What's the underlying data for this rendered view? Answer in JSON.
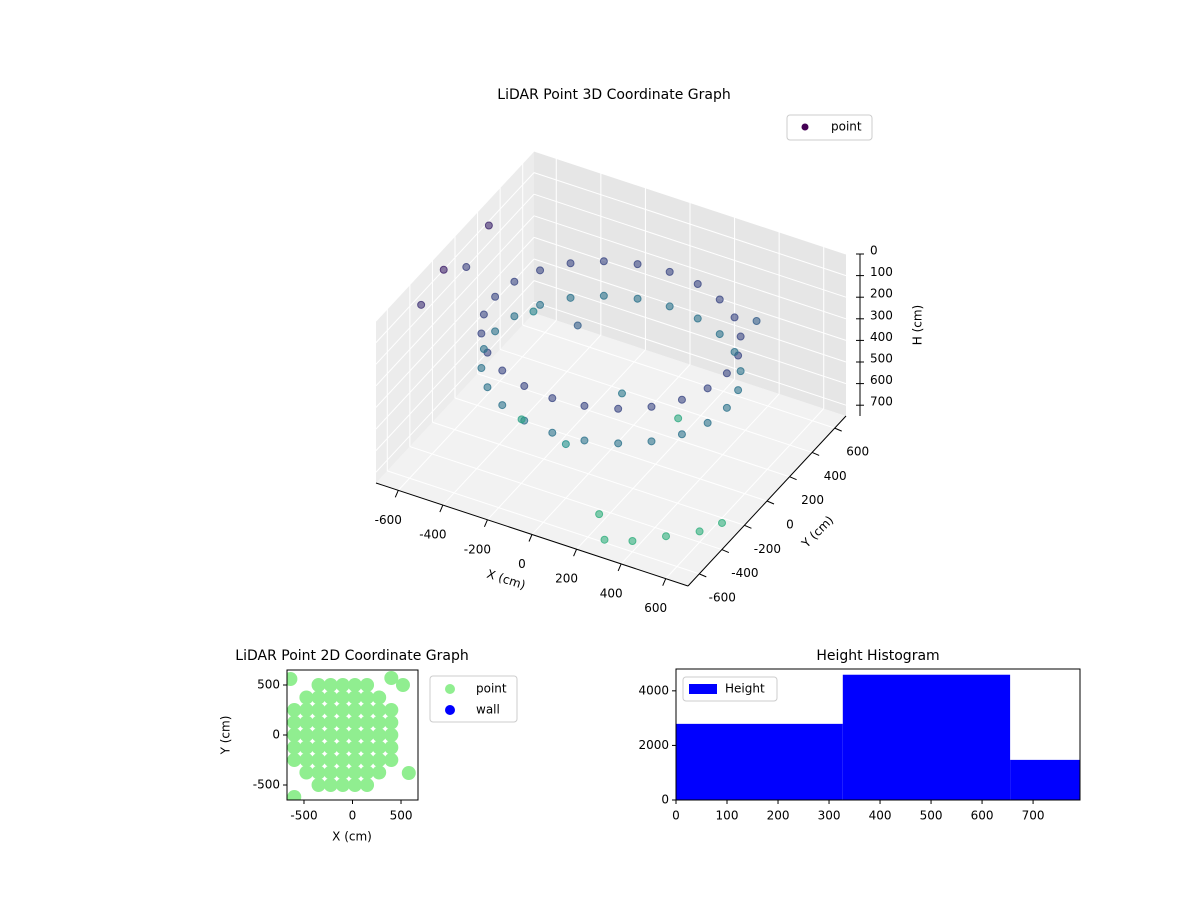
{
  "chart_data": [
    {
      "type": "scatter3d",
      "title": "LiDAR Point 3D Coordinate Graph",
      "xlabel": "X (cm)",
      "ylabel": "Y (cm)",
      "zlabel": "H (cm)",
      "xlim": [
        -700,
        700
      ],
      "ylim": [
        -700,
        700
      ],
      "zlim": [
        0,
        750
      ],
      "z_inverted": true,
      "xticks": [
        -600,
        -400,
        -200,
        0,
        200,
        400,
        600
      ],
      "yticks": [
        -600,
        -400,
        -200,
        0,
        200,
        400,
        600
      ],
      "zticks": [
        0,
        100,
        200,
        300,
        400,
        500,
        600,
        700
      ],
      "grid": true,
      "legend": "upper right",
      "alpha": 0.6,
      "colormap": [
        "#440154",
        "#3b528b",
        "#21918c",
        "#35b779"
      ],
      "series": [
        {
          "name": "point",
          "color": "#440154",
          "x": [
            520,
            502,
            450,
            368,
            260,
            135,
            0,
            -135,
            -260,
            -368,
            -450,
            -502,
            -520,
            -502,
            -450,
            -368,
            -260,
            -135,
            0,
            135,
            260,
            368,
            450,
            502,
            520,
            502,
            450,
            368,
            260,
            135,
            0,
            -135,
            -260,
            -368,
            -450,
            -502,
            -520,
            -502,
            -450,
            -368,
            -260,
            -135,
            0,
            135,
            260,
            368,
            450,
            502,
            300,
            400,
            500,
            600,
            650,
            200,
            -700,
            -700,
            -700,
            -700,
            -300,
            0,
            200,
            -500,
            400,
            100,
            -200
          ],
          "y": [
            0,
            135,
            260,
            368,
            450,
            502,
            520,
            502,
            450,
            368,
            260,
            135,
            0,
            -135,
            -260,
            -368,
            -450,
            -502,
            -520,
            -502,
            -450,
            -368,
            -260,
            -135,
            0,
            135,
            260,
            368,
            450,
            502,
            520,
            502,
            450,
            368,
            260,
            135,
            0,
            -135,
            -260,
            -368,
            -450,
            -502,
            -520,
            -502,
            -450,
            -368,
            -260,
            -135,
            -650,
            -600,
            -500,
            -400,
            -300,
            -500,
            -300,
            -100,
            100,
            300,
            -200,
            -400,
            200,
            300,
            500,
            -100,
            100
          ],
          "z": [
            220,
            220,
            220,
            220,
            220,
            220,
            220,
            220,
            220,
            220,
            220,
            220,
            220,
            220,
            220,
            220,
            220,
            220,
            220,
            220,
            220,
            220,
            220,
            220,
            380,
            380,
            380,
            380,
            380,
            380,
            380,
            380,
            380,
            380,
            380,
            380,
            380,
            380,
            380,
            380,
            380,
            380,
            380,
            380,
            380,
            380,
            380,
            380,
            700,
            700,
            700,
            700,
            700,
            700,
            150,
            100,
            200,
            120,
            600,
            500,
            650,
            450,
            300,
            400,
            300
          ]
        }
      ]
    },
    {
      "type": "scatter",
      "title": "LiDAR Point 2D Coordinate Graph",
      "xlabel": "X (cm)",
      "ylabel": "Y (cm)",
      "xlim": [
        -675,
        675
      ],
      "ylim": [
        -650,
        650
      ],
      "xticks": [
        -500,
        0,
        500
      ],
      "yticks": [
        -500,
        0,
        500
      ],
      "legend": "outside right",
      "series": [
        {
          "name": "point",
          "color": "#90ee90",
          "x": [
            -350,
            -225,
            -100,
            25,
            150,
            -475,
            -350,
            -225,
            -100,
            25,
            150,
            275,
            -600,
            -475,
            -350,
            -225,
            -100,
            25,
            150,
            275,
            400,
            -600,
            -475,
            -350,
            -225,
            -100,
            25,
            150,
            275,
            400,
            -600,
            -475,
            -350,
            -225,
            -100,
            25,
            150,
            275,
            400,
            -600,
            -475,
            -350,
            -225,
            -100,
            25,
            150,
            275,
            400,
            -600,
            -475,
            -350,
            -225,
            -100,
            25,
            150,
            275,
            400,
            -475,
            -350,
            -225,
            -100,
            25,
            150,
            275,
            -350,
            -225,
            -100,
            25,
            150,
            -640,
            400,
            580,
            -600,
            520
          ],
          "y": [
            500,
            500,
            500,
            500,
            500,
            375,
            375,
            375,
            375,
            375,
            375,
            375,
            250,
            250,
            250,
            250,
            250,
            250,
            250,
            250,
            250,
            125,
            125,
            125,
            125,
            125,
            125,
            125,
            125,
            125,
            0,
            0,
            0,
            0,
            0,
            0,
            0,
            0,
            0,
            -125,
            -125,
            -125,
            -125,
            -125,
            -125,
            -125,
            -125,
            -125,
            -250,
            -250,
            -250,
            -250,
            -250,
            -250,
            -250,
            -250,
            -250,
            -375,
            -375,
            -375,
            -375,
            -375,
            -375,
            -375,
            -500,
            -500,
            -500,
            -500,
            -500,
            560,
            570,
            -380,
            -620,
            500
          ]
        },
        {
          "name": "wall",
          "color": "#0000ff",
          "x": [],
          "y": []
        }
      ]
    },
    {
      "type": "histogram",
      "title": "Height Histogram",
      "name": "Height",
      "color": "#0000ff",
      "bins": [
        0,
        327,
        655,
        792
      ],
      "counts": [
        2790,
        4590,
        1470
      ],
      "xlim": [
        0,
        792
      ],
      "ylim": [
        0,
        4800
      ],
      "xticks": [
        0,
        100,
        200,
        300,
        400,
        500,
        600,
        700
      ],
      "yticks": [
        0,
        2000,
        4000
      ],
      "legend": "upper left"
    }
  ]
}
